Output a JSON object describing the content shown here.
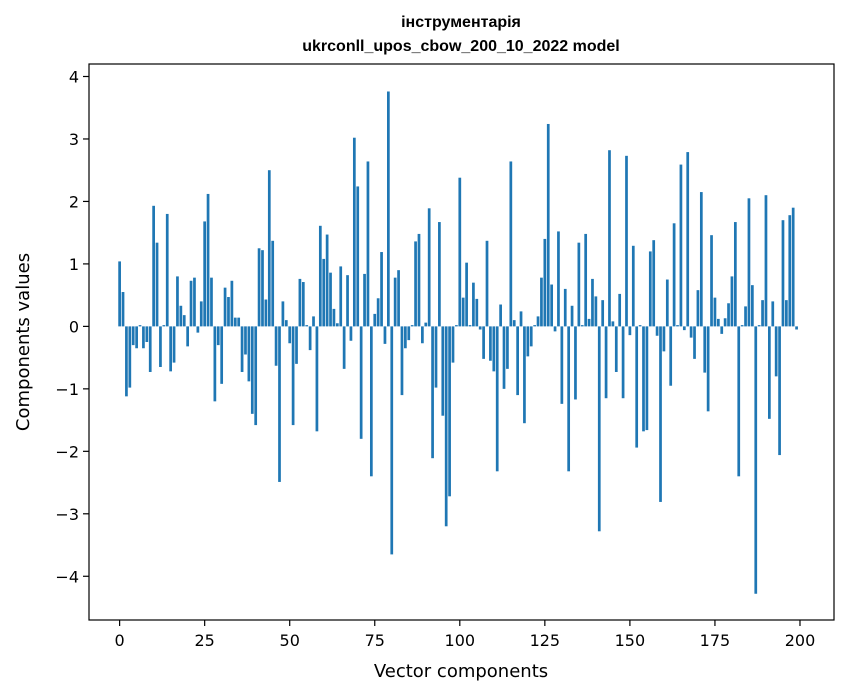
{
  "chart_data": {
    "type": "bar",
    "title": "інструментарія",
    "subtitle": "ukrconll_upos_cbow_200_10_2022 model",
    "xlabel": "Vector components",
    "ylabel": "Components values",
    "xlim": [
      -9,
      210
    ],
    "ylim": [
      -4.7,
      4.2
    ],
    "xticks": [
      0,
      25,
      50,
      75,
      100,
      125,
      150,
      175,
      200
    ],
    "yticks": [
      -4,
      -3,
      -2,
      -1,
      0,
      1,
      2,
      3,
      4
    ],
    "grid": false,
    "bar_color": "#1f77b4",
    "values": [
      1.04,
      0.55,
      -1.12,
      -0.98,
      -0.3,
      -0.35,
      0.02,
      -0.35,
      -0.25,
      -0.73,
      1.93,
      1.34,
      -0.65,
      0.02,
      1.8,
      -0.72,
      -0.58,
      0.8,
      0.33,
      0.18,
      -0.32,
      0.73,
      0.78,
      -0.1,
      0.4,
      1.68,
      2.12,
      0.78,
      -1.2,
      -0.3,
      -0.92,
      0.62,
      0.47,
      0.73,
      0.14,
      0.14,
      -0.73,
      -0.45,
      -0.88,
      -1.4,
      -1.58,
      1.25,
      1.22,
      0.43,
      2.5,
      1.37,
      -0.63,
      -2.49,
      0.4,
      0.1,
      -0.27,
      -1.58,
      -0.6,
      0.76,
      0.71,
      0.02,
      -0.38,
      0.16,
      -1.68,
      1.61,
      1.08,
      1.47,
      0.86,
      0.28,
      0.05,
      0.96,
      -0.68,
      0.82,
      -0.23,
      3.02,
      2.24,
      -1.8,
      0.84,
      2.64,
      -2.4,
      0.2,
      0.45,
      1.19,
      -0.28,
      3.76,
      -3.65,
      0.78,
      0.9,
      -1.1,
      -0.35,
      -0.22,
      0.02,
      1.36,
      1.48,
      -0.27,
      0.06,
      1.89,
      -2.11,
      -0.98,
      1.67,
      -1.43,
      -3.2,
      -2.72,
      -0.58,
      0.02,
      2.38,
      0.46,
      1.02,
      0.02,
      0.7,
      0.44,
      -0.05,
      -0.52,
      1.37,
      -0.55,
      -0.72,
      -2.32,
      0.35,
      -1.0,
      -0.68,
      2.64,
      0.1,
      -1.1,
      0.24,
      -1.55,
      -0.48,
      -0.32,
      0.02,
      0.16,
      0.78,
      1.4,
      3.24,
      0.67,
      -0.08,
      1.52,
      -1.24,
      0.6,
      -2.32,
      0.33,
      -1.17,
      1.34,
      0.02,
      1.48,
      0.12,
      0.76,
      0.48,
      -3.28,
      0.42,
      -1.15,
      2.82,
      0.08,
      -0.73,
      0.52,
      -1.15,
      2.73,
      -0.14,
      1.29,
      -1.94,
      0.02,
      -1.68,
      -1.66,
      1.2,
      1.38,
      -0.15,
      -2.81,
      -0.4,
      0.75,
      -0.95,
      1.65,
      0.02,
      2.59,
      -0.06,
      2.79,
      -0.18,
      -0.52,
      0.58,
      2.15,
      -0.74,
      -1.36,
      1.46,
      0.46,
      0.12,
      -0.12,
      0.13,
      0.37,
      0.8,
      1.67,
      -2.4,
      0.02,
      0.32,
      2.05,
      0.66,
      -4.28,
      0.02,
      0.42,
      2.1,
      -1.48,
      0.4,
      -0.8,
      -2.06,
      1.7,
      0.42,
      1.78,
      1.9,
      -0.05
    ]
  }
}
